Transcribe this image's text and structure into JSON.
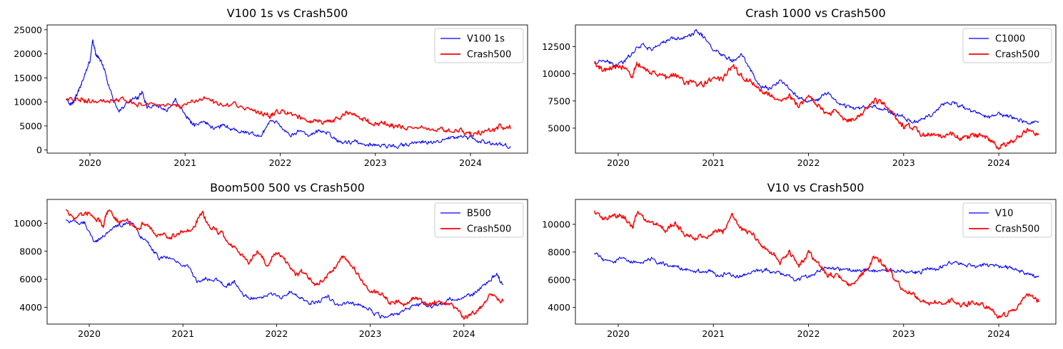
{
  "chart_data": [
    {
      "type": "line",
      "title": "V100 1s vs Crash500",
      "xlabel": "",
      "ylabel": "",
      "xlim": [
        2019.55,
        2024.6
      ],
      "ylim": [
        -650,
        26000
      ],
      "xticks": [
        2020,
        2021,
        2022,
        2023,
        2024
      ],
      "xtick_labels": [
        "2020",
        "2021",
        "2022",
        "2023",
        "2024"
      ],
      "yticks": [
        0,
        5000,
        10000,
        15000,
        20000,
        25000
      ],
      "ytick_labels": [
        "0",
        "5000",
        "10000",
        "15000",
        "20000",
        "25000"
      ],
      "legend": "top-right",
      "series": [
        {
          "name": "V100 1s",
          "color": "#0000ff",
          "x": [
            2019.75,
            2019.8,
            2019.85,
            2019.9,
            2019.95,
            2020.0,
            2020.03,
            2020.06,
            2020.1,
            2020.15,
            2020.2,
            2020.3,
            2020.4,
            2020.5,
            2020.55,
            2020.6,
            2020.7,
            2020.8,
            2020.9,
            2021.0,
            2021.05,
            2021.1,
            2021.2,
            2021.3,
            2021.4,
            2021.5,
            2021.6,
            2021.7,
            2021.8,
            2021.9,
            2022.0,
            2022.1,
            2022.2,
            2022.3,
            2022.4,
            2022.5,
            2022.6,
            2022.7,
            2022.8,
            2022.9,
            2023.0,
            2023.1,
            2023.2,
            2023.3,
            2023.4,
            2023.5,
            2023.6,
            2023.7,
            2023.8,
            2023.9,
            2024.0,
            2024.1,
            2024.2,
            2024.3,
            2024.42
          ],
          "y": [
            10500,
            9500,
            11000,
            13000,
            16000,
            18500,
            23000,
            20000,
            19000,
            17000,
            13000,
            8000,
            10000,
            11000,
            12000,
            9000,
            9500,
            8000,
            10500,
            7500,
            6000,
            5000,
            6000,
            4500,
            5200,
            4200,
            3800,
            3500,
            2800,
            6500,
            5000,
            3000,
            4000,
            3000,
            4000,
            3500,
            2000,
            1500,
            1800,
            1200,
            1100,
            900,
            800,
            1000,
            1400,
            1700,
            1600,
            2200,
            2500,
            3000,
            2500,
            1800,
            1400,
            1100,
            800
          ]
        },
        {
          "name": "Crash500",
          "color": "#ff0000",
          "x": [
            2019.75,
            2019.9,
            2020.0,
            2020.2,
            2020.3,
            2020.5,
            2020.7,
            2020.9,
            2021.0,
            2021.2,
            2021.3,
            2021.5,
            2021.7,
            2021.8,
            2021.9,
            2022.0,
            2022.1,
            2022.2,
            2022.3,
            2022.4,
            2022.5,
            2022.6,
            2022.7,
            2022.8,
            2022.9,
            2023.0,
            2023.1,
            2023.2,
            2023.3,
            2023.5,
            2023.7,
            2023.8,
            2023.9,
            2024.0,
            2024.1,
            2024.2,
            2024.3,
            2024.42
          ],
          "y": [
            10800,
            10600,
            10400,
            10300,
            10600,
            9600,
            9300,
            8900,
            9000,
            10800,
            10000,
            9400,
            8400,
            7600,
            7100,
            8000,
            7500,
            6700,
            6300,
            5900,
            5800,
            6500,
            7500,
            7000,
            6300,
            5300,
            5700,
            4800,
            4600,
            4500,
            4300,
            4100,
            4000,
            3400,
            3500,
            4100,
            4700,
            4400
          ]
        }
      ]
    },
    {
      "type": "line",
      "title": "Crash 1000 vs Crash500",
      "xlabel": "",
      "ylabel": "",
      "xlim": [
        2019.55,
        2024.6
      ],
      "ylim": [
        2700,
        14500
      ],
      "xticks": [
        2020,
        2021,
        2022,
        2023,
        2024
      ],
      "xtick_labels": [
        "2020",
        "2021",
        "2022",
        "2023",
        "2024"
      ],
      "yticks": [
        5000,
        7500,
        10000,
        12500
      ],
      "ytick_labels": [
        "5000",
        "7500",
        "10000",
        "12500"
      ],
      "legend": "top-right",
      "series": [
        {
          "name": "C1000",
          "color": "#0000ff",
          "x": [
            2019.75,
            2019.85,
            2019.95,
            2020.05,
            2020.15,
            2020.25,
            2020.35,
            2020.45,
            2020.55,
            2020.65,
            2020.75,
            2020.82,
            2020.9,
            2021.0,
            2021.1,
            2021.2,
            2021.3,
            2021.4,
            2021.5,
            2021.6,
            2021.7,
            2021.8,
            2021.9,
            2022.0,
            2022.1,
            2022.2,
            2022.3,
            2022.4,
            2022.5,
            2022.6,
            2022.7,
            2022.8,
            2022.9,
            2023.0,
            2023.1,
            2023.2,
            2023.3,
            2023.4,
            2023.5,
            2023.6,
            2023.7,
            2023.8,
            2023.9,
            2024.0,
            2024.1,
            2024.2,
            2024.3,
            2024.42
          ],
          "y": [
            11000,
            11200,
            10800,
            11000,
            12000,
            12800,
            12200,
            12800,
            13200,
            13300,
            13500,
            13900,
            13400,
            12200,
            11800,
            11300,
            11800,
            10200,
            8800,
            8700,
            9300,
            8700,
            7800,
            7400,
            7600,
            8300,
            7400,
            7000,
            6900,
            6900,
            7000,
            6700,
            6300,
            6000,
            5500,
            5900,
            6300,
            7100,
            7400,
            7000,
            6600,
            6300,
            6000,
            6300,
            6100,
            5900,
            5500,
            5600
          ]
        },
        {
          "name": "Crash500",
          "color": "#ff0000",
          "x": [
            2019.75,
            2019.85,
            2019.95,
            2020.05,
            2020.15,
            2020.2,
            2020.3,
            2020.4,
            2020.5,
            2020.6,
            2020.7,
            2020.8,
            2020.9,
            2021.0,
            2021.1,
            2021.2,
            2021.3,
            2021.4,
            2021.5,
            2021.6,
            2021.7,
            2021.8,
            2021.9,
            2022.0,
            2022.1,
            2022.2,
            2022.3,
            2022.4,
            2022.5,
            2022.6,
            2022.7,
            2022.8,
            2022.9,
            2023.0,
            2023.1,
            2023.2,
            2023.3,
            2023.4,
            2023.5,
            2023.6,
            2023.7,
            2023.8,
            2023.9,
            2024.0,
            2024.1,
            2024.2,
            2024.3,
            2024.42
          ],
          "y": [
            11000,
            10300,
            10700,
            10600,
            9800,
            11000,
            10200,
            10200,
            9600,
            10100,
            9200,
            9100,
            9100,
            9500,
            9500,
            10800,
            9700,
            9300,
            8600,
            8000,
            7300,
            8000,
            7000,
            8000,
            7200,
            6300,
            6500,
            5600,
            5900,
            6700,
            7600,
            7000,
            6100,
            5200,
            5000,
            4400,
            4300,
            4300,
            4600,
            4100,
            4300,
            4300,
            4000,
            3300,
            3600,
            4100,
            4900,
            4400
          ]
        }
      ]
    },
    {
      "type": "line",
      "title": "Boom500 500 vs Crash500",
      "xlabel": "",
      "ylabel": "",
      "xlim": [
        2019.55,
        2024.68
      ],
      "ylim": [
        2800,
        11700
      ],
      "xticks": [
        2020,
        2021,
        2022,
        2023,
        2024
      ],
      "xtick_labels": [
        "2020",
        "2021",
        "2022",
        "2023",
        "2024"
      ],
      "yticks": [
        4000,
        6000,
        8000,
        10000
      ],
      "ytick_labels": [
        "4000",
        "6000",
        "8000",
        "10000"
      ],
      "legend": "top-right",
      "series": [
        {
          "name": "B500",
          "color": "#0000ff",
          "x": [
            2019.75,
            2019.85,
            2019.95,
            2020.05,
            2020.15,
            2020.25,
            2020.35,
            2020.45,
            2020.55,
            2020.65,
            2020.75,
            2020.85,
            2020.95,
            2021.05,
            2021.15,
            2021.25,
            2021.35,
            2021.45,
            2021.55,
            2021.65,
            2021.75,
            2021.85,
            2021.95,
            2022.05,
            2022.15,
            2022.25,
            2022.35,
            2022.45,
            2022.55,
            2022.65,
            2022.75,
            2022.85,
            2022.95,
            2023.05,
            2023.15,
            2023.25,
            2023.35,
            2023.45,
            2023.55,
            2023.65,
            2023.75,
            2023.85,
            2023.95,
            2024.05,
            2024.15,
            2024.25,
            2024.35,
            2024.42
          ],
          "y": [
            10300,
            10000,
            10100,
            8600,
            9100,
            9700,
            9900,
            10100,
            9000,
            8400,
            7500,
            7600,
            7200,
            6900,
            5800,
            6100,
            6000,
            5500,
            5800,
            4800,
            4600,
            4700,
            5000,
            4600,
            5100,
            4700,
            4300,
            4400,
            4800,
            4100,
            4300,
            4200,
            4100,
            3500,
            3300,
            3500,
            3700,
            4100,
            4300,
            4100,
            4200,
            4500,
            4600,
            4800,
            5200,
            5800,
            6400,
            5600
          ]
        },
        {
          "name": "Crash500",
          "color": "#ff0000",
          "x": [
            2019.75,
            2019.85,
            2019.95,
            2020.05,
            2020.15,
            2020.2,
            2020.3,
            2020.4,
            2020.5,
            2020.6,
            2020.7,
            2020.8,
            2020.9,
            2021.0,
            2021.1,
            2021.2,
            2021.3,
            2021.4,
            2021.5,
            2021.6,
            2021.7,
            2021.8,
            2021.9,
            2022.0,
            2022.1,
            2022.2,
            2022.3,
            2022.4,
            2022.5,
            2022.6,
            2022.7,
            2022.8,
            2022.9,
            2023.0,
            2023.1,
            2023.2,
            2023.3,
            2023.4,
            2023.5,
            2023.6,
            2023.7,
            2023.8,
            2023.9,
            2024.0,
            2024.1,
            2024.2,
            2024.3,
            2024.42
          ],
          "y": [
            11000,
            10300,
            10700,
            10600,
            9800,
            11000,
            10200,
            10200,
            9600,
            10100,
            9200,
            9100,
            9100,
            9500,
            9500,
            10800,
            9700,
            9300,
            8600,
            8000,
            7300,
            8000,
            7000,
            8000,
            7200,
            6300,
            6500,
            5600,
            5900,
            6700,
            7600,
            7000,
            6100,
            5200,
            5000,
            4400,
            4300,
            4300,
            4600,
            4100,
            4300,
            4300,
            4000,
            3300,
            3600,
            4100,
            4900,
            4400
          ]
        }
      ]
    },
    {
      "type": "line",
      "title": "V10 vs Crash500",
      "xlabel": "",
      "ylabel": "",
      "xlim": [
        2019.55,
        2024.6
      ],
      "ylim": [
        2800,
        11800
      ],
      "xticks": [
        2020,
        2021,
        2022,
        2023,
        2024
      ],
      "xtick_labels": [
        "2020",
        "2021",
        "2022",
        "2023",
        "2024"
      ],
      "yticks": [
        4000,
        6000,
        8000,
        10000
      ],
      "ytick_labels": [
        "4000",
        "6000",
        "8000",
        "10000"
      ],
      "legend": "top-right",
      "series": [
        {
          "name": "V10",
          "color": "#0000ff",
          "x": [
            2019.75,
            2019.85,
            2019.95,
            2020.05,
            2020.15,
            2020.25,
            2020.35,
            2020.45,
            2020.55,
            2020.65,
            2020.75,
            2020.85,
            2020.95,
            2021.05,
            2021.15,
            2021.25,
            2021.35,
            2021.45,
            2021.55,
            2021.65,
            2021.75,
            2021.85,
            2021.95,
            2022.05,
            2022.15,
            2022.25,
            2022.35,
            2022.45,
            2022.55,
            2022.65,
            2022.75,
            2022.85,
            2022.95,
            2023.05,
            2023.15,
            2023.25,
            2023.35,
            2023.45,
            2023.55,
            2023.65,
            2023.75,
            2023.85,
            2023.95,
            2024.05,
            2024.15,
            2024.25,
            2024.35,
            2024.42
          ],
          "y": [
            7900,
            7400,
            7300,
            7600,
            7300,
            7300,
            7500,
            7200,
            7000,
            6900,
            6700,
            6600,
            6600,
            6300,
            6500,
            6200,
            6400,
            6600,
            6700,
            6500,
            6400,
            6000,
            6100,
            6400,
            6800,
            6800,
            6800,
            6700,
            6600,
            6700,
            6600,
            6700,
            6700,
            6600,
            6500,
            6800,
            6700,
            7200,
            7300,
            7100,
            7000,
            7100,
            7000,
            6900,
            6800,
            6600,
            6300,
            6200
          ]
        },
        {
          "name": "Crash500",
          "color": "#ff0000",
          "x": [
            2019.75,
            2019.85,
            2019.95,
            2020.05,
            2020.15,
            2020.2,
            2020.3,
            2020.4,
            2020.5,
            2020.6,
            2020.7,
            2020.8,
            2020.9,
            2021.0,
            2021.1,
            2021.2,
            2021.3,
            2021.4,
            2021.5,
            2021.6,
            2021.7,
            2021.8,
            2021.9,
            2022.0,
            2022.1,
            2022.2,
            2022.3,
            2022.4,
            2022.5,
            2022.6,
            2022.7,
            2022.8,
            2022.9,
            2023.0,
            2023.1,
            2023.2,
            2023.3,
            2023.4,
            2023.5,
            2023.6,
            2023.7,
            2023.8,
            2023.9,
            2024.0,
            2024.1,
            2024.2,
            2024.3,
            2024.42
          ],
          "y": [
            11000,
            10300,
            10700,
            10600,
            9800,
            11000,
            10200,
            10200,
            9600,
            10100,
            9200,
            9100,
            9100,
            9500,
            9500,
            10800,
            9700,
            9300,
            8600,
            8000,
            7300,
            8000,
            7000,
            8000,
            7200,
            6300,
            6500,
            5600,
            5900,
            6700,
            7600,
            7000,
            6100,
            5200,
            5000,
            4400,
            4300,
            4300,
            4600,
            4100,
            4300,
            4300,
            4000,
            3300,
            3600,
            4100,
            4900,
            4400
          ]
        }
      ]
    }
  ]
}
